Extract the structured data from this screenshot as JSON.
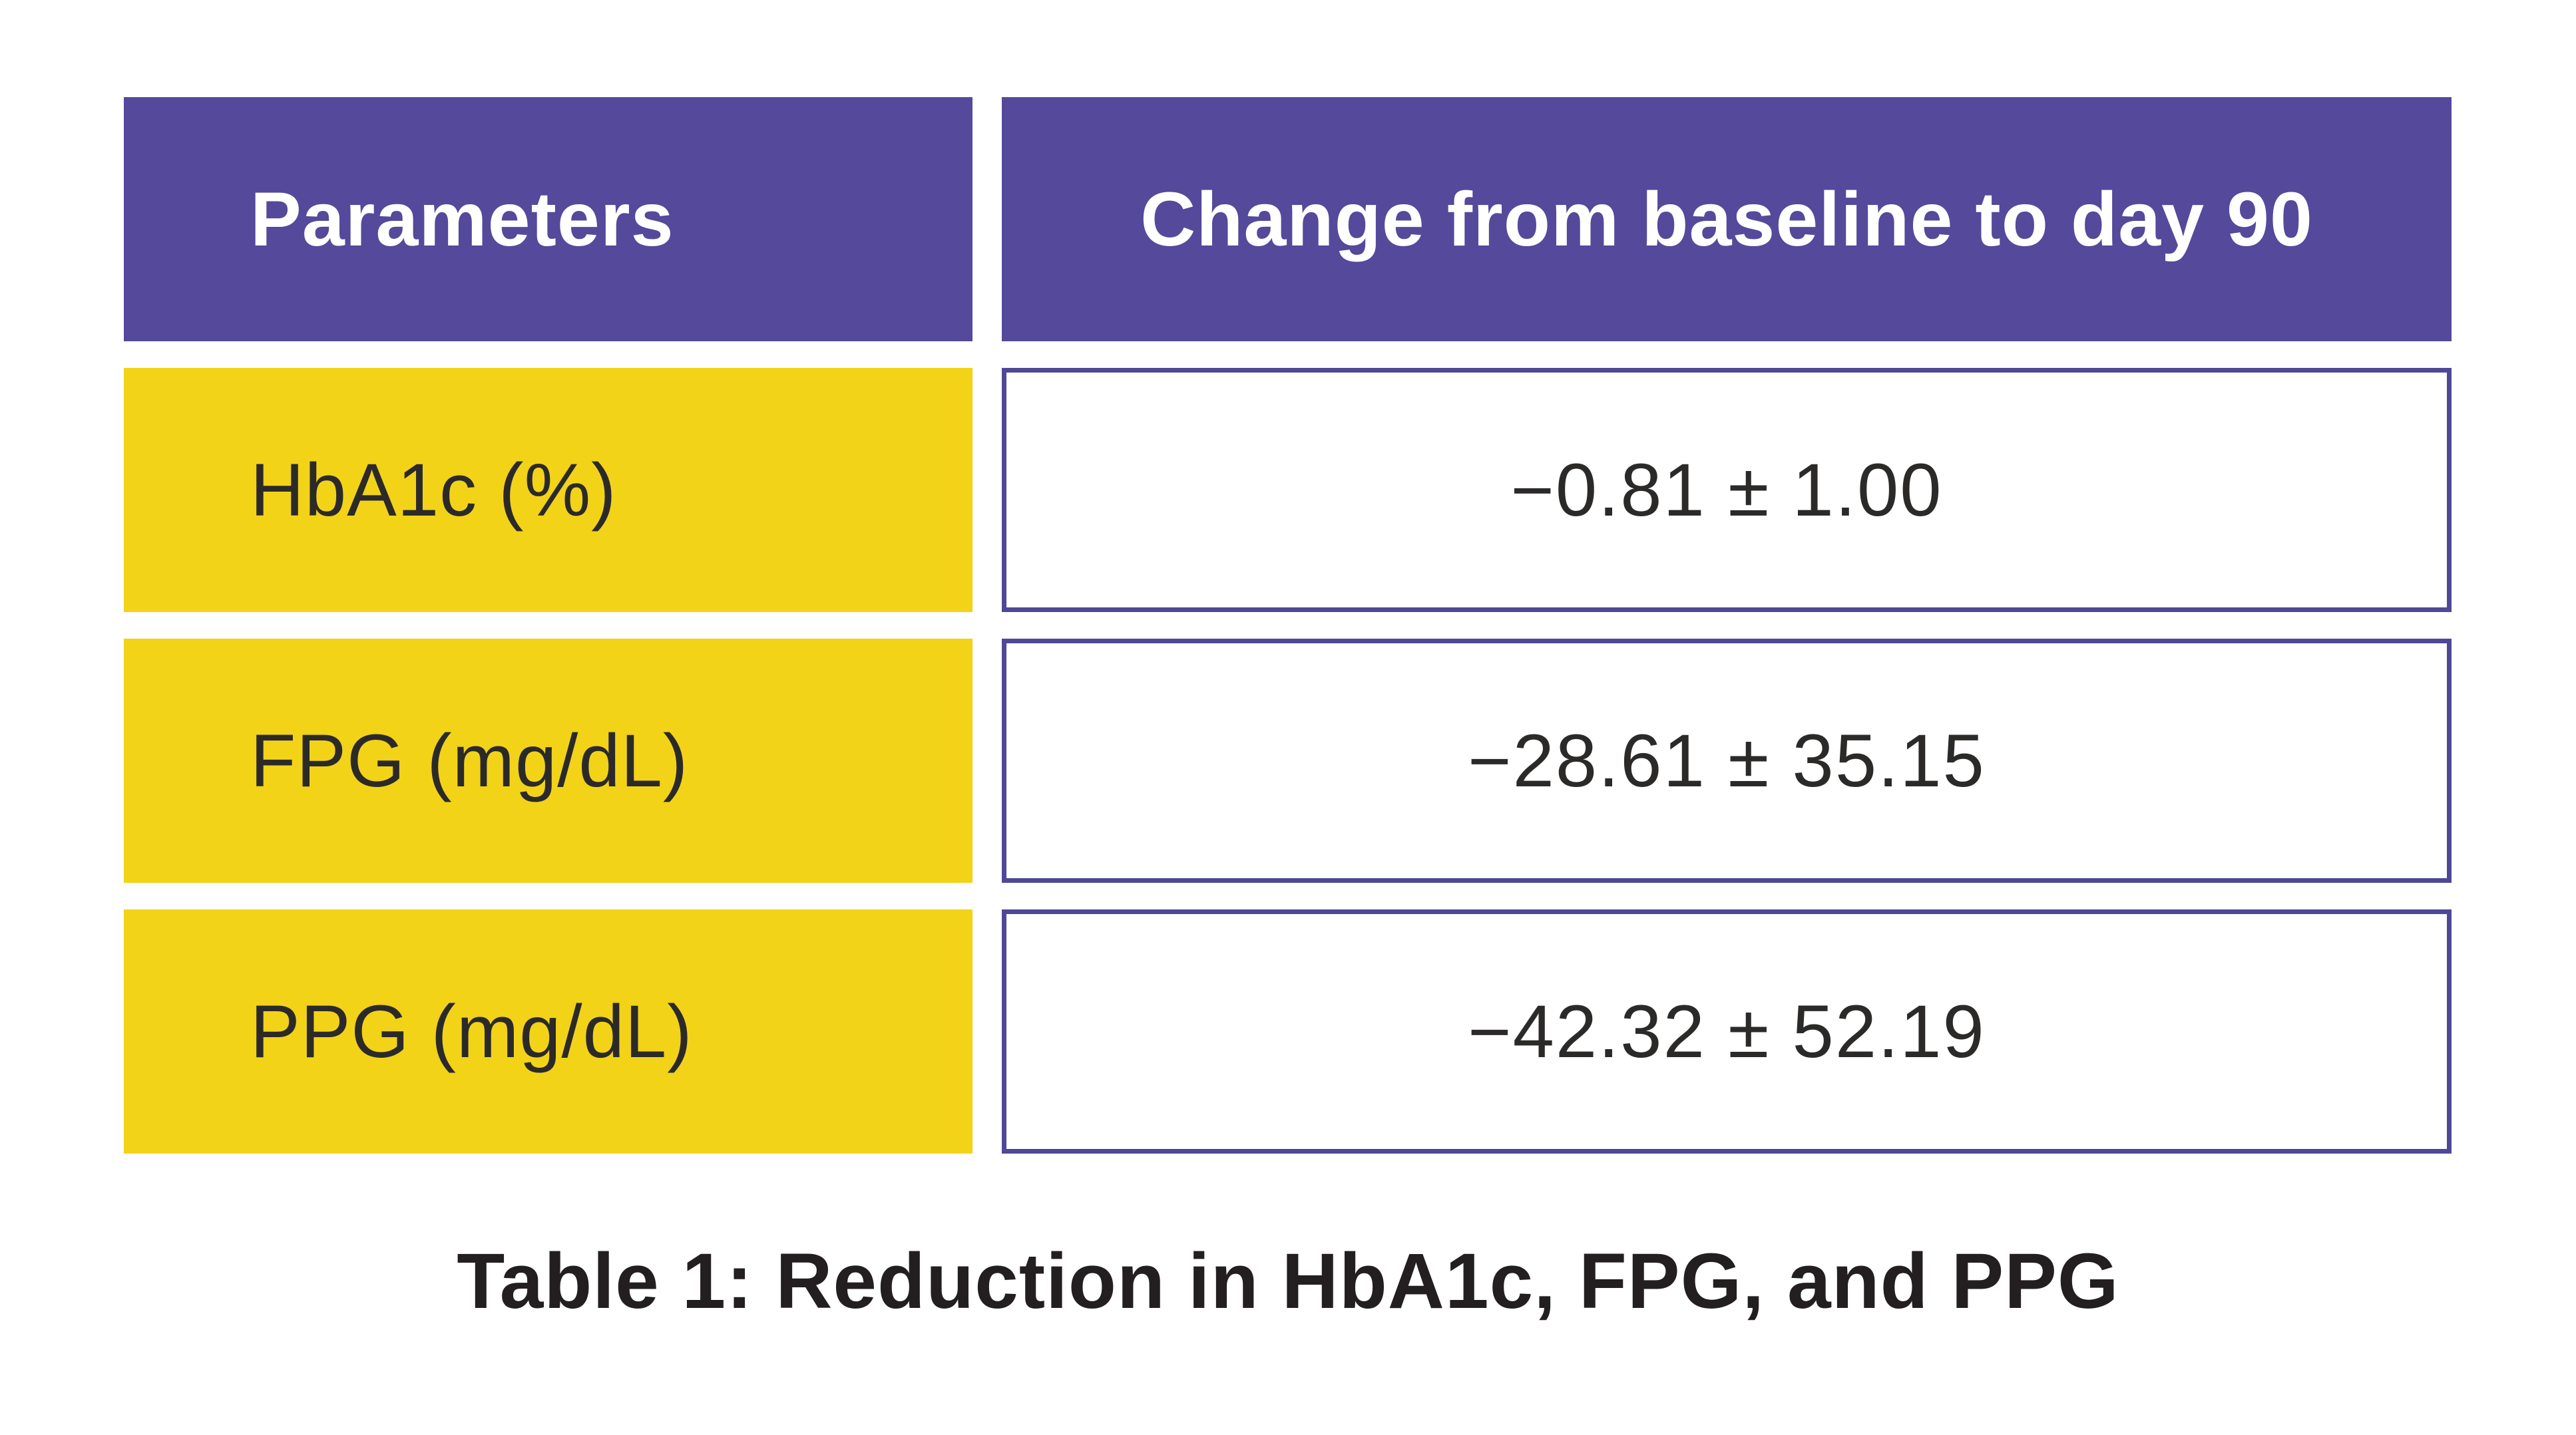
{
  "chart_data": {
    "type": "table",
    "title": "Table 1: Reduction in HbA1c, FPG, and PPG",
    "columns": [
      "Parameters",
      "Change from baseline to day 90"
    ],
    "rows": [
      [
        "HbA1c (%)",
        "−0.81 ± 1.00"
      ],
      [
        "FPG (mg/dL)",
        "−28.61 ± 35.15"
      ],
      [
        "PPG (mg/dL)",
        "−42.32 ± 52.19"
      ]
    ],
    "values": [
      {
        "parameter": "HbA1c",
        "unit": "%",
        "mean_change": -0.81,
        "sd": 1.0
      },
      {
        "parameter": "FPG",
        "unit": "mg/dL",
        "mean_change": -28.61,
        "sd": 35.15
      },
      {
        "parameter": "PPG",
        "unit": "mg/dL",
        "mean_change": -42.32,
        "sd": 52.19
      }
    ],
    "layout": {
      "header_position": "top",
      "caption_position": "bottom"
    }
  },
  "table": {
    "header": {
      "parameters": "Parameters",
      "change": "Change from baseline to day 90"
    },
    "rows": [
      {
        "parameter": "HbA1c (%)",
        "value": "−0.81 ± 1.00"
      },
      {
        "parameter": "FPG (mg/dL)",
        "value": "−28.61 ± 35.15"
      },
      {
        "parameter": "PPG (mg/dL)",
        "value": "−42.32 ± 52.19"
      }
    ],
    "caption": "Table 1: Reduction in HbA1c, FPG, and PPG"
  },
  "colors": {
    "header_bg": "#54499B",
    "header_text": "#FFFFFF",
    "param_bg": "#F2D318",
    "value_border": "#4E4896",
    "body_text": "#2B2A29",
    "caption_text": "#231F20",
    "background": "#FFFFFF"
  }
}
